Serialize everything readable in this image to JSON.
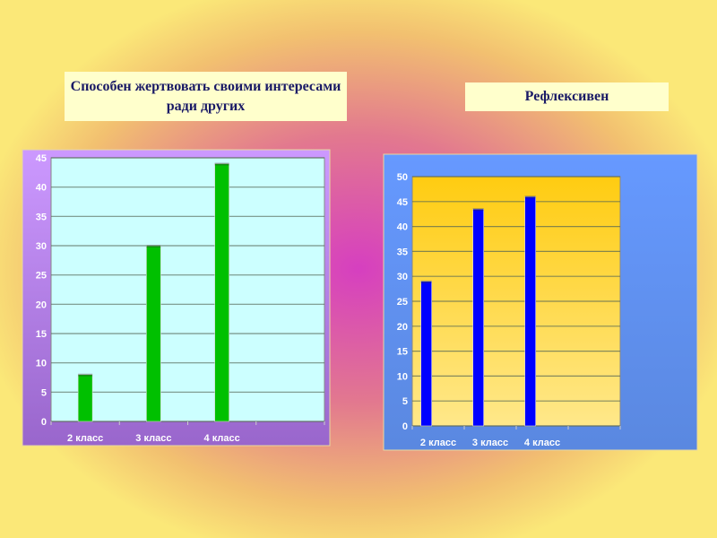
{
  "chart_data": [
    {
      "type": "bar",
      "title": "Способен жертвовать своими интересами ради других",
      "categories": [
        "2 класс",
        "3 класс",
        "4 класс"
      ],
      "values": [
        8,
        30,
        44
      ],
      "ylim": [
        0,
        45
      ],
      "yticks": [
        0,
        5,
        10,
        15,
        20,
        25,
        30,
        35,
        40,
        45
      ],
      "grid": true,
      "colors": {
        "bar": "#00c000",
        "plot": "#ccffff",
        "frame_top": "#cc99ff",
        "frame_bottom": "#9966cc"
      }
    },
    {
      "type": "bar",
      "title": "Рефлексивен",
      "categories": [
        "2 класс",
        "3 класс",
        "4 класс"
      ],
      "values": [
        29,
        43.5,
        46
      ],
      "ylim": [
        0,
        50
      ],
      "yticks": [
        0,
        5,
        10,
        15,
        20,
        25,
        30,
        35,
        40,
        45,
        50
      ],
      "grid": true,
      "colors": {
        "bar": "#0000ff",
        "plot_top": "#ffcc11",
        "plot_bottom": "#ffe88a",
        "frame_top": "#6699ff",
        "frame_bottom": "#5a88e0"
      }
    }
  ]
}
